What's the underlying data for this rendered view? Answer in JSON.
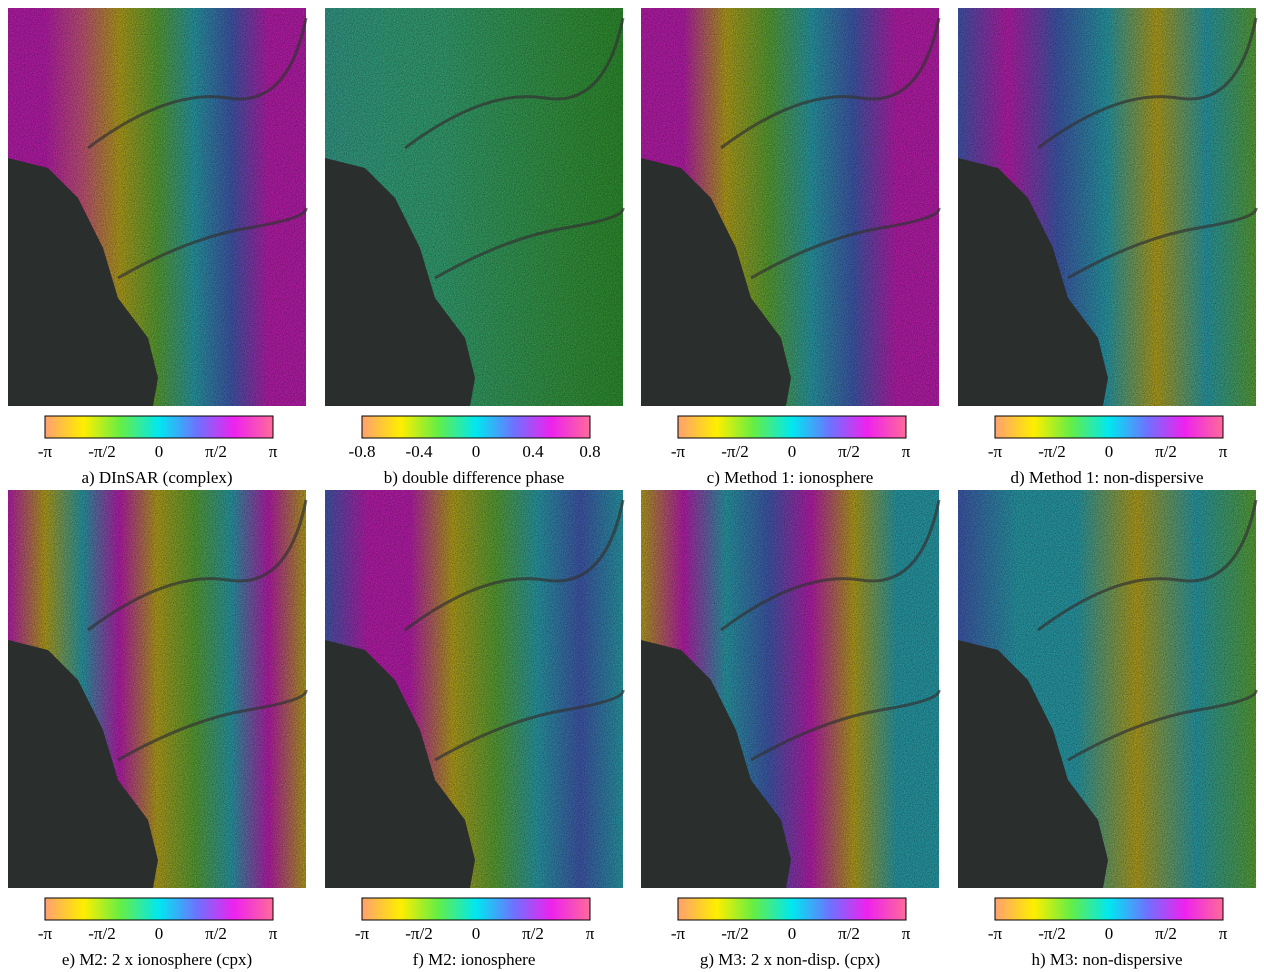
{
  "panels": [
    {
      "colorbar_ticks": [
        "-π",
        "-π/2",
        "0",
        "π/2",
        "π"
      ],
      "caption": "a) DInSAR (complex)"
    },
    {
      "colorbar_ticks": [
        "-0.8",
        "-0.4",
        "0",
        "0.4",
        "0.8"
      ],
      "caption": "b) double difference phase"
    },
    {
      "colorbar_ticks": [
        "-π",
        "-π/2",
        "0",
        "π/2",
        "π"
      ],
      "caption": "c) Method 1: ionosphere"
    },
    {
      "colorbar_ticks": [
        "-π",
        "-π/2",
        "0",
        "π/2",
        "π"
      ],
      "caption": "d) Method 1: non-dispersive"
    },
    {
      "colorbar_ticks": [
        "-π",
        "-π/2",
        "0",
        "π/2",
        "π"
      ],
      "caption": "e) M2: 2 x ionosphere (cpx)"
    },
    {
      "colorbar_ticks": [
        "-π",
        "-π/2",
        "0",
        "π/2",
        "π"
      ],
      "caption": "f) M2: ionosphere"
    },
    {
      "colorbar_ticks": [
        "-π",
        "-π/2",
        "0",
        "π/2",
        "π"
      ],
      "caption": "g) M3: 2 x non-disp. (cpx)"
    },
    {
      "colorbar_ticks": [
        "-π",
        "-π/2",
        "0",
        "π/2",
        "π"
      ],
      "caption": "h) M3: non-dispersive"
    }
  ]
}
